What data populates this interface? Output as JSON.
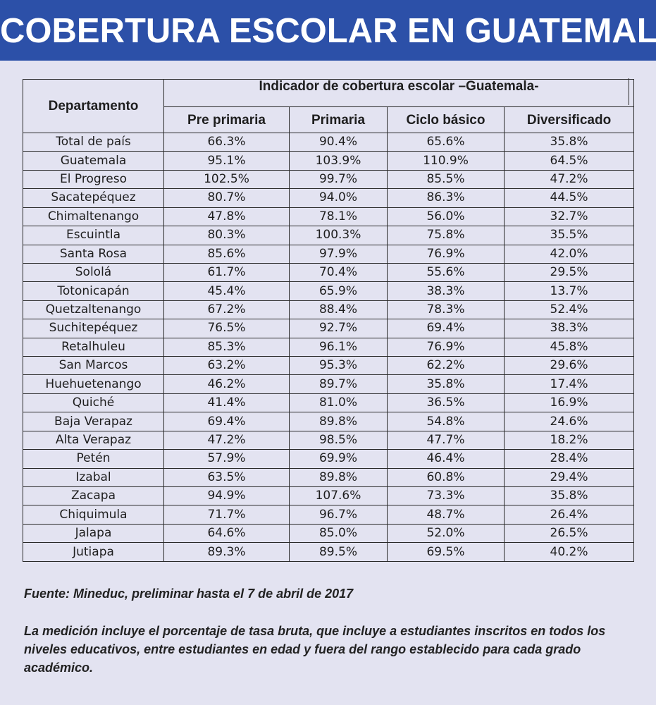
{
  "title": "COBERTURA ESCOLAR EN GUATEMALA",
  "table": {
    "row_header": "Departamento",
    "group_header": "Indicador de cobertura escolar –Guatemala-",
    "columns": [
      "Pre primaria",
      "Primaria",
      "Ciclo básico",
      "Diversificado"
    ],
    "rows": [
      [
        "Total de país",
        "66.3%",
        "90.4%",
        "65.6%",
        "35.8%"
      ],
      [
        "Guatemala",
        "95.1%",
        "103.9%",
        "110.9%",
        "64.5%"
      ],
      [
        "El Progreso",
        "102.5%",
        "99.7%",
        "85.5%",
        "47.2%"
      ],
      [
        "Sacatepéquez",
        "80.7%",
        "94.0%",
        "86.3%",
        "44.5%"
      ],
      [
        "Chimaltenango",
        "47.8%",
        "78.1%",
        "56.0%",
        "32.7%"
      ],
      [
        "Escuintla",
        "80.3%",
        "100.3%",
        "75.8%",
        "35.5%"
      ],
      [
        "Santa Rosa",
        "85.6%",
        "97.9%",
        "76.9%",
        "42.0%"
      ],
      [
        "Sololá",
        "61.7%",
        "70.4%",
        "55.6%",
        "29.5%"
      ],
      [
        "Totonicapán",
        "45.4%",
        "65.9%",
        "38.3%",
        "13.7%"
      ],
      [
        "Quetzaltenango",
        "67.2%",
        "88.4%",
        "78.3%",
        "52.4%"
      ],
      [
        "Suchitepéquez",
        "76.5%",
        "92.7%",
        "69.4%",
        "38.3%"
      ],
      [
        "Retalhuleu",
        "85.3%",
        "96.1%",
        "76.9%",
        "45.8%"
      ],
      [
        "San Marcos",
        "63.2%",
        "95.3%",
        "62.2%",
        "29.6%"
      ],
      [
        "Huehuetenango",
        "46.2%",
        "89.7%",
        "35.8%",
        "17.4%"
      ],
      [
        "Quiché",
        "41.4%",
        "81.0%",
        "36.5%",
        "16.9%"
      ],
      [
        "Baja Verapaz",
        "69.4%",
        "89.8%",
        "54.8%",
        "24.6%"
      ],
      [
        "Alta Verapaz",
        "47.2%",
        "98.5%",
        "47.7%",
        "18.2%"
      ],
      [
        "Petén",
        "57.9%",
        "69.9%",
        "46.4%",
        "28.4%"
      ],
      [
        "Izabal",
        "63.5%",
        "89.8%",
        "60.8%",
        "29.4%"
      ],
      [
        "Zacapa",
        "94.9%",
        "107.6%",
        "73.3%",
        "35.8%"
      ],
      [
        "Chiquimula",
        "71.7%",
        "96.7%",
        "48.7%",
        "26.4%"
      ],
      [
        "Jalapa",
        "64.6%",
        "85.0%",
        "52.0%",
        "26.5%"
      ],
      [
        "Jutiapa",
        "89.3%",
        "89.5%",
        "69.5%",
        "40.2%"
      ]
    ]
  },
  "source": "Fuente: Mineduc, preliminar hasta el 7 de abril de 2017",
  "note": "La medición incluye el porcentaje de tasa bruta,  que incluye a estudiantes inscritos en todos los niveles educativos, entre estudiantes en edad y fuera del rango establecido para cada grado académico.",
  "colors": {
    "banner": "#2c50a8",
    "background": "#e3e3f1",
    "border": "#2a2a2a",
    "text": "#1e1e1e"
  }
}
